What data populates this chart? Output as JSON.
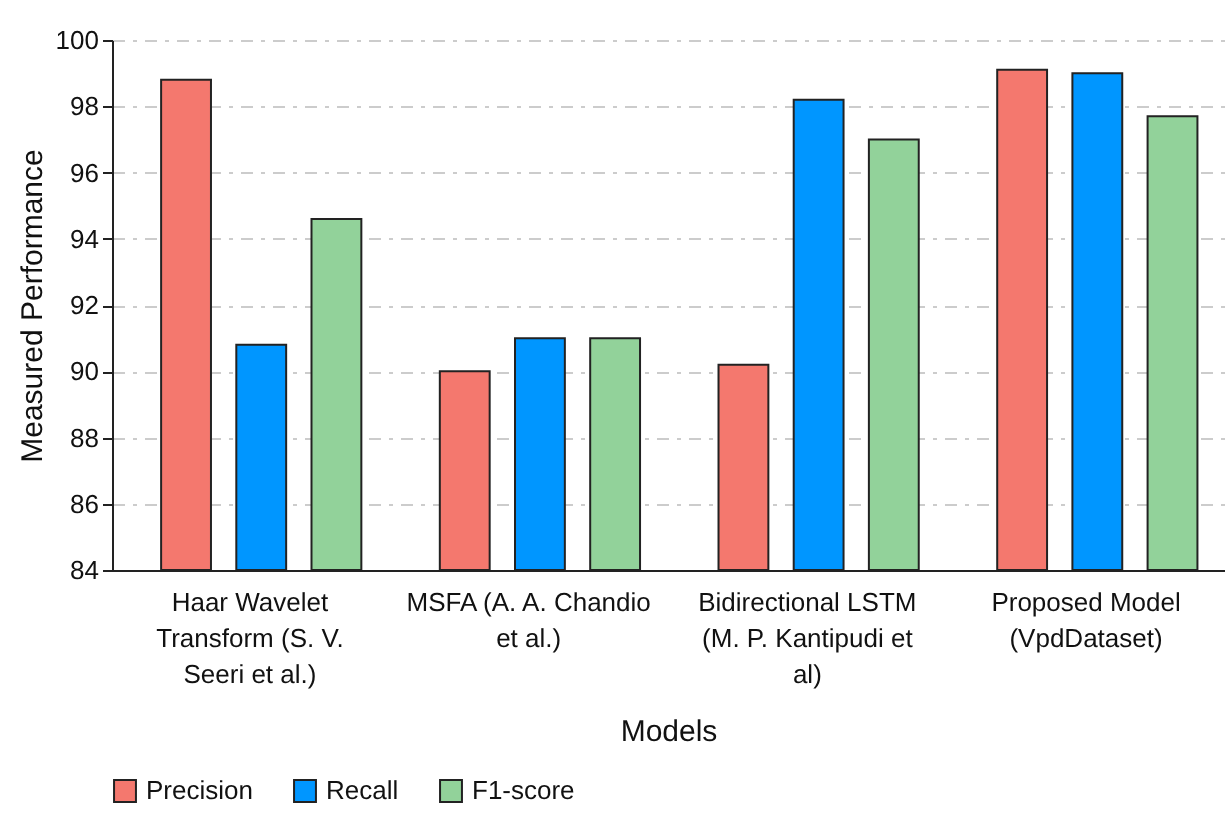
{
  "chart_data": {
    "type": "bar",
    "xlabel": "Models",
    "ylabel": "Measured Performance",
    "categories": [
      "Haar Wavelet Transform (S. V. Seeri et al.)",
      "MSFA (A. A. Chandio et al.)",
      "Bidirectional LSTM (M. P. Kantipudi et al)",
      "Proposed Model (VpdDataset)"
    ],
    "series": [
      {
        "name": "Precision",
        "color": "#f4786e",
        "values": [
          98.8,
          90.0,
          90.2,
          99.1
        ]
      },
      {
        "name": "Recall",
        "color": "#0096ff",
        "values": [
          90.8,
          91.0,
          98.2,
          99.0
        ]
      },
      {
        "name": "F1-score",
        "color": "#92d29a",
        "values": [
          94.6,
          91.0,
          97.0,
          97.7
        ]
      }
    ],
    "ylim": [
      84,
      100
    ],
    "yticks": [
      84,
      86,
      88,
      90,
      92,
      94,
      96,
      98,
      100
    ],
    "grid": "y",
    "legend": "bottom"
  }
}
